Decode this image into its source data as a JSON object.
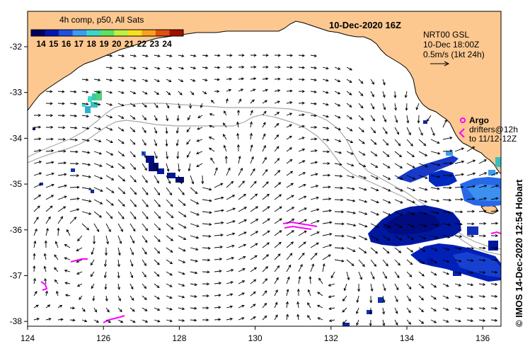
{
  "map": {
    "title": "10-Dec-2020 16Z",
    "colorbar": {
      "title": "4h comp, p50, All Sats",
      "labels": [
        "14",
        "15",
        "16",
        "17",
        "18",
        "19",
        "20",
        "21",
        "22",
        "23",
        "24"
      ],
      "colors": [
        "#000060",
        "#0018b0",
        "#2050e0",
        "#3c9cf0",
        "#38d8c8",
        "#60e060",
        "#c0f040",
        "#f8e020",
        "#f8a020",
        "#e05010",
        "#a01000"
      ]
    },
    "vector_legend": {
      "line1": "NRT00 GSL",
      "line2": "10-Dec 18:00Z",
      "line3": "0.5m/s (1kt 24h)"
    },
    "argo_legend": {
      "argo_label": "Argo",
      "drifters_line1": "drifters@12h",
      "drifters_line2": "to 11/12-12Z"
    },
    "credit": "© IMOS 14-Dec-2020 12:54 Hobart",
    "x_ticks": [
      "124",
      "126",
      "128",
      "130",
      "132",
      "134",
      "136"
    ],
    "y_ticks": [
      "-32",
      "-33",
      "-34",
      "-35",
      "-36",
      "-37",
      "-38"
    ],
    "colors": {
      "land": "#fcc890",
      "coast": "#000000",
      "bathymetry": "#a8a8a8",
      "drifter": "#ff00ff",
      "vector": "#000000"
    }
  }
}
